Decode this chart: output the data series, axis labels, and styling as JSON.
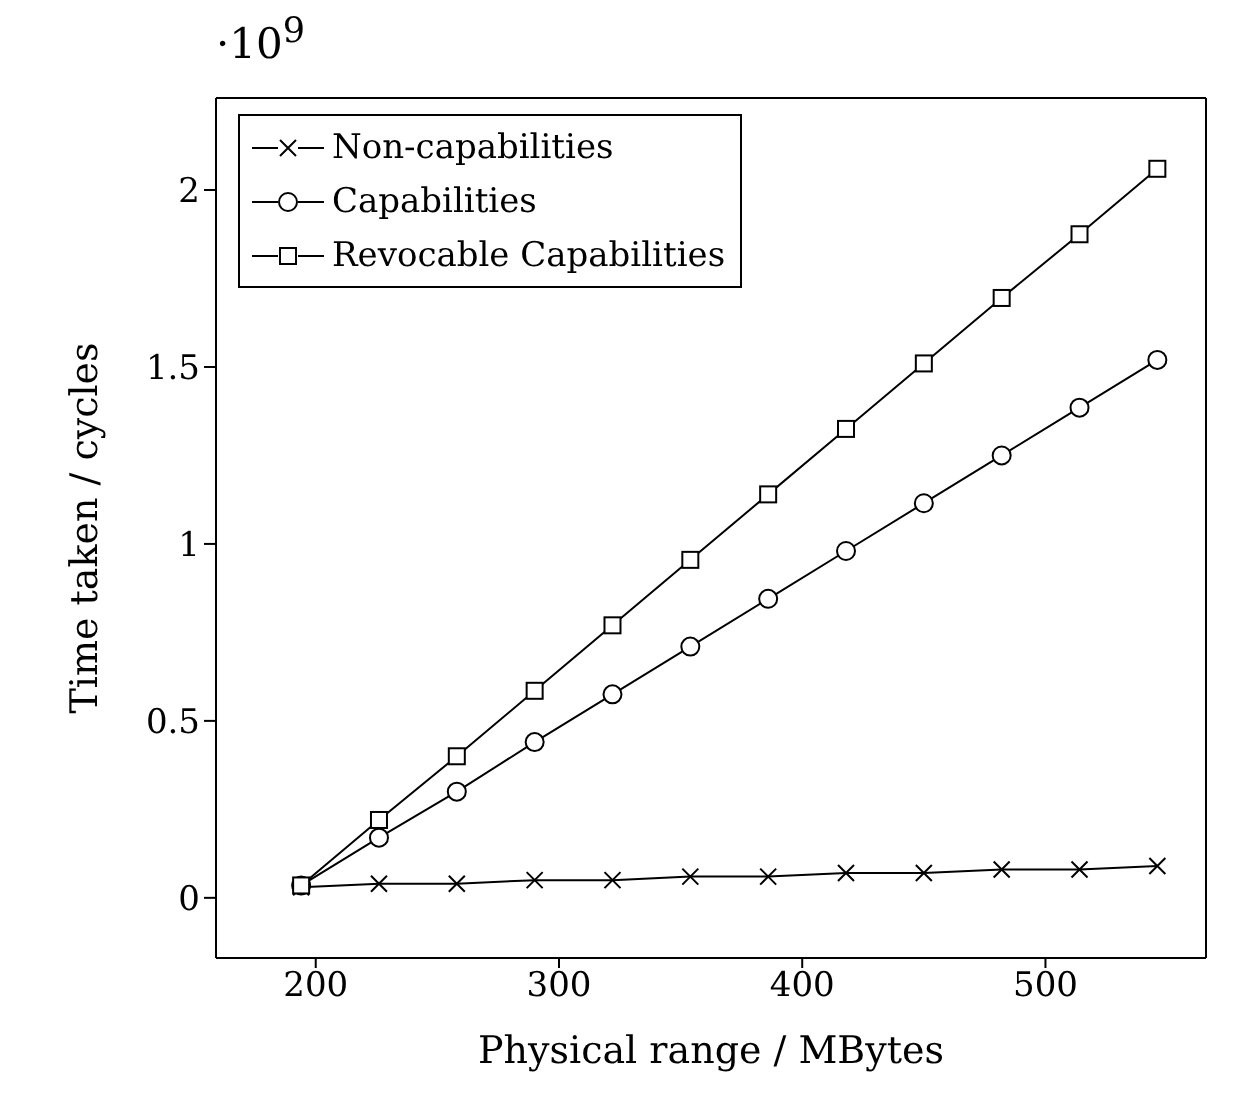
{
  "chart_data": {
    "type": "line",
    "xlabel": "Physical range / MBytes",
    "ylabel": "Time taken / cycles",
    "annotations": [
      "·10$^{9}$"
    ],
    "x": [
      194,
      226,
      258,
      290,
      322,
      354,
      386,
      418,
      450,
      482,
      514,
      546
    ],
    "series": [
      {
        "name": "Non-capabilities",
        "color": "#000000",
        "marker": "cross",
        "values": [
          0.03,
          0.04,
          0.04,
          0.05,
          0.05,
          0.06,
          0.06,
          0.07,
          0.07,
          0.08,
          0.08,
          0.09
        ]
      },
      {
        "name": "Capabilities",
        "color": "#000000",
        "marker": "circle",
        "values": [
          0.035,
          0.17,
          0.3,
          0.44,
          0.575,
          0.71,
          0.845,
          0.98,
          1.115,
          1.25,
          1.385,
          1.52
        ]
      },
      {
        "name": "Revocable Capabilities",
        "color": "#000000",
        "marker": "square",
        "values": [
          0.035,
          0.22,
          0.4,
          0.585,
          0.77,
          0.955,
          1.14,
          1.325,
          1.51,
          1.695,
          1.875,
          2.06
        ]
      }
    ],
    "xlim": [
      159,
      566
    ],
    "xticks": [
      200,
      300,
      400,
      500
    ],
    "ylim": [
      -0.17,
      2.26
    ],
    "yticks": [
      0,
      0.5,
      1,
      1.5,
      2
    ],
    "legend": "top left"
  }
}
